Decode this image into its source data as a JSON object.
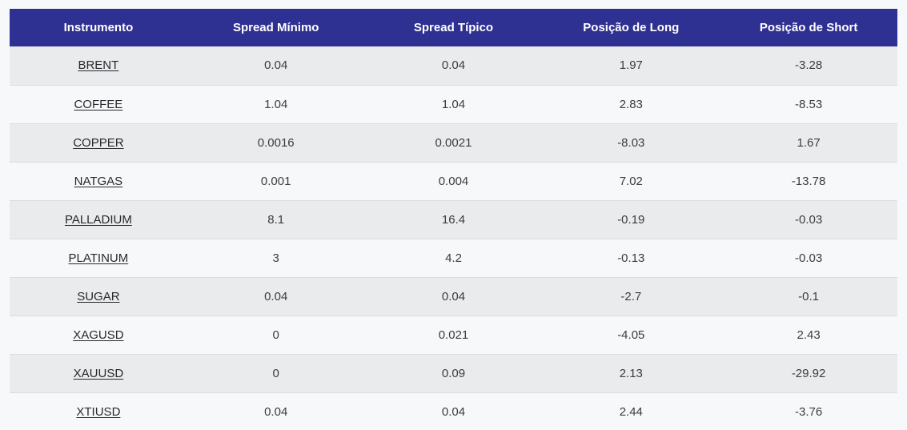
{
  "table": {
    "columns": [
      "Instrumento",
      "Spread Mínimo",
      "Spread Típico",
      "Posição de Long",
      "Posição de Short"
    ],
    "rows": [
      [
        "BRENT",
        "0.04",
        "0.04",
        "1.97",
        "-3.28"
      ],
      [
        "COFFEE",
        "1.04",
        "1.04",
        "2.83",
        "-8.53"
      ],
      [
        "COPPER",
        "0.0016",
        "0.0021",
        "-8.03",
        "1.67"
      ],
      [
        "NATGAS",
        "0.001",
        "0.004",
        "7.02",
        "-13.78"
      ],
      [
        "PALLADIUM",
        "8.1",
        "16.4",
        "-0.19",
        "-0.03"
      ],
      [
        "PLATINUM",
        "3",
        "4.2",
        "-0.13",
        "-0.03"
      ],
      [
        "SUGAR",
        "0.04",
        "0.04",
        "-2.7",
        "-0.1"
      ],
      [
        "XAGUSD",
        "0",
        "0.021",
        "-4.05",
        "2.43"
      ],
      [
        "XAUUSD",
        "0",
        "0.09",
        "2.13",
        "-29.92"
      ],
      [
        "XTIUSD",
        "0.04",
        "0.04",
        "2.44",
        "-3.76"
      ]
    ]
  },
  "colors": {
    "header_bg": "#2e3192",
    "header_text": "#ffffff",
    "row_alt_bg": "#eaebed",
    "row_bg": "#f7f8fa",
    "page_bg": "#f7f8fa",
    "border": "#dadcdf",
    "body_text": "#3b3c42",
    "link_text": "#28282e"
  }
}
